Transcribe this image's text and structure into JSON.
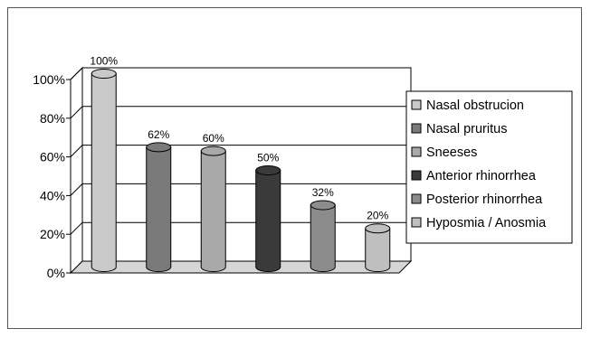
{
  "chart_data": {
    "type": "bar",
    "style": "3d-cylinder",
    "categories": [
      "Nasal obstrucion",
      "Nasal pruritus",
      "Sneeses",
      "Anterior rhinorrhea",
      "Posterior rhinorrhea",
      "Hyposmia / Anosmia"
    ],
    "values": [
      100,
      62,
      60,
      50,
      32,
      20
    ],
    "data_labels": [
      "100%",
      "62%",
      "60%",
      "50%",
      "32%",
      "20%"
    ],
    "yticks": [
      "0%",
      "20%",
      "40%",
      "60%",
      "80%",
      "100%"
    ],
    "ylim": [
      0,
      100
    ],
    "grid": true,
    "legend": "right",
    "colors": [
      "#c9c9c9",
      "#7a7a7a",
      "#a9a9a9",
      "#3a3a3a",
      "#8c8c8c",
      "#bfbfbf"
    ]
  }
}
